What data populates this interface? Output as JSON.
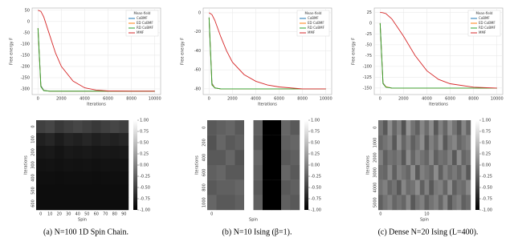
{
  "chart_data": [
    {
      "type": "line",
      "xlabel": "Iterations",
      "ylabel": "Free energy F",
      "legend_title": "Mean-field",
      "legend": "upper right",
      "grid": true,
      "x": [
        0,
        250,
        500,
        1000,
        1500,
        2000,
        3000,
        4000,
        5000,
        6000,
        8000,
        10000
      ],
      "xlim": [
        -500,
        10500
      ],
      "xticks": [
        0,
        2000,
        4000,
        6000,
        8000,
        10000
      ],
      "ylim": [
        -325,
        60
      ],
      "yticks": [
        50,
        0,
        -50,
        -100,
        -150,
        -200,
        -250,
        -300
      ],
      "series": [
        {
          "name": "CoBMF",
          "color": "#1f77b4",
          "values": [
            -30,
            -285,
            -306,
            -310,
            -310,
            -310,
            -310,
            -310,
            -310,
            -310,
            -310,
            -310
          ]
        },
        {
          "name": "ED CoBMF",
          "color": "#ff7f0e",
          "values": [
            -30,
            -288,
            -307,
            -310,
            -310,
            -310,
            -310,
            -310,
            -310,
            -310,
            -310,
            -310
          ]
        },
        {
          "name": "RD CoBMF",
          "color": "#2ca02c",
          "values": [
            -30,
            -290,
            -308,
            -310,
            -310,
            -310,
            -310,
            -310,
            -310,
            -310,
            -310,
            -310
          ]
        },
        {
          "name": "MMF",
          "color": "#d62728",
          "values": [
            50,
            45,
            20,
            -60,
            -140,
            -200,
            -265,
            -295,
            -305,
            -309,
            -310,
            -310
          ]
        }
      ]
    },
    {
      "type": "heatmap",
      "xlabel": "Spin",
      "ylabel": "Iterations",
      "zlim": [
        -1,
        1
      ],
      "row_labels": [
        "0",
        "100",
        "200",
        "300",
        "400",
        "500",
        "600"
      ],
      "col_labels": [
        "0",
        "10",
        "20",
        "30",
        "40",
        "50",
        "60",
        "70",
        "80",
        "90"
      ],
      "zticks": [
        {
          "value": 1,
          "label": "1.00"
        },
        {
          "value": 0.75,
          "label": "0.75"
        },
        {
          "value": 0.5,
          "label": "0.50"
        },
        {
          "value": 0.25,
          "label": "0.25"
        },
        {
          "value": 0,
          "label": "0.00"
        },
        {
          "value": -0.25,
          "label": "-0.25"
        },
        {
          "value": -0.5,
          "label": "-0.50"
        },
        {
          "value": -0.75,
          "label": "-0.75"
        },
        {
          "value": -1,
          "label": "-1.00"
        }
      ],
      "z": [
        [
          -0.5,
          -0.45,
          -0.55,
          -0.5,
          -0.45,
          -0.5,
          -0.55,
          -0.5,
          -0.45,
          -0.5
        ],
        [
          -0.75,
          -0.7,
          -0.78,
          -0.72,
          -0.75,
          -0.7,
          -0.76,
          -0.72,
          -0.74,
          -0.7
        ],
        [
          -0.82,
          -0.8,
          -0.84,
          -0.8,
          -0.82,
          -0.8,
          -0.83,
          -0.81,
          -0.82,
          -0.8
        ],
        [
          -0.86,
          -0.85,
          -0.87,
          -0.85,
          -0.86,
          -0.85,
          -0.87,
          -0.85,
          -0.86,
          -0.85
        ],
        [
          -0.88,
          -0.88,
          -0.89,
          -0.88,
          -0.88,
          -0.88,
          -0.89,
          -0.88,
          -0.88,
          -0.88
        ],
        [
          -0.9,
          -0.9,
          -0.9,
          -0.9,
          -0.9,
          -0.9,
          -0.9,
          -0.9,
          -0.9,
          -0.9
        ],
        [
          -0.9,
          -0.9,
          -0.9,
          -0.9,
          -0.9,
          -0.9,
          -0.9,
          -0.9,
          -0.9,
          -0.9
        ]
      ]
    },
    {
      "type": "line",
      "xlabel": "Iterations",
      "ylabel": "Free energy F",
      "legend_title": "Mean-field",
      "legend": "upper right",
      "grid": true,
      "x": [
        0,
        250,
        500,
        1000,
        1500,
        2000,
        3000,
        4000,
        5000,
        6000,
        8000,
        10000
      ],
      "xlim": [
        -500,
        10500
      ],
      "xticks": [
        0,
        2000,
        4000,
        6000,
        8000,
        10000
      ],
      "ylim": [
        -86,
        5
      ],
      "yticks": [
        0,
        -20,
        -40,
        -60,
        -80
      ],
      "series": [
        {
          "name": "CoBMF",
          "color": "#1f77b4",
          "values": [
            -5,
            -74,
            -79,
            -80,
            -80,
            -80,
            -80,
            -80,
            -80,
            -80,
            -80,
            -80
          ]
        },
        {
          "name": "ED CoBMF",
          "color": "#ff7f0e",
          "values": [
            -5,
            -75,
            -79,
            -80,
            -80,
            -80,
            -80,
            -80,
            -80,
            -80,
            -80,
            -80
          ]
        },
        {
          "name": "RD CoBMF",
          "color": "#2ca02c",
          "values": [
            -5,
            -76,
            -79,
            -80,
            -80,
            -80,
            -80,
            -80,
            -80,
            -80,
            -80,
            -80
          ]
        },
        {
          "name": "MMF",
          "color": "#d62728",
          "values": [
            0,
            -2,
            -8,
            -25,
            -40,
            -52,
            -65,
            -72,
            -76,
            -78,
            -80,
            -80
          ]
        }
      ]
    },
    {
      "type": "heatmap",
      "xlabel": "Spin",
      "ylabel": "Iterations",
      "zlim": [
        -1,
        1
      ],
      "row_labels": [
        "0",
        "200",
        "400",
        "600",
        "800",
        "1000"
      ],
      "col_labels": [
        "0",
        null,
        null,
        null,
        null,
        null,
        null,
        null,
        null,
        null
      ],
      "zticks": [
        {
          "value": 1,
          "label": "1.00"
        },
        {
          "value": 0.75,
          "label": "0.75"
        },
        {
          "value": 0.5,
          "label": "0.50"
        },
        {
          "value": 0.25,
          "label": "0.25"
        },
        {
          "value": 0,
          "label": "0.00"
        },
        {
          "value": -0.25,
          "label": "-0.25"
        },
        {
          "value": -0.5,
          "label": "-0.50"
        },
        {
          "value": -0.75,
          "label": "-0.75"
        },
        {
          "value": -1,
          "label": "-1.00"
        }
      ],
      "z": [
        [
          -0.3,
          -0.25,
          -0.2,
          -0.3,
          1,
          -0.25,
          -1,
          -1,
          -0.2,
          -0.3
        ],
        [
          -0.35,
          -0.2,
          -0.3,
          -0.25,
          1,
          -0.3,
          -1,
          -1,
          -0.25,
          -0.2
        ],
        [
          -0.3,
          -0.3,
          -0.2,
          -0.35,
          1,
          -0.2,
          -1,
          -1,
          -0.3,
          -0.25
        ],
        [
          -0.25,
          -0.2,
          -0.3,
          -0.3,
          1,
          -0.25,
          -1,
          -1,
          -0.2,
          -0.3
        ],
        [
          -0.3,
          -0.25,
          -0.25,
          -0.2,
          1,
          -0.3,
          -1,
          -1,
          -0.3,
          -0.25
        ],
        [
          -0.2,
          -0.3,
          -0.3,
          -0.25,
          1,
          -0.25,
          -1,
          -1,
          -0.25,
          -0.3
        ]
      ]
    },
    {
      "type": "line",
      "xlabel": "Iterations",
      "ylabel": "Free energy F",
      "legend_title": "Mean-field",
      "legend": "upper right",
      "grid": true,
      "x": [
        0,
        250,
        500,
        1000,
        1500,
        2000,
        3000,
        4000,
        5000,
        6000,
        8000,
        10000
      ],
      "xlim": [
        -500,
        10500
      ],
      "xticks": [
        0,
        2000,
        4000,
        6000,
        8000,
        10000
      ],
      "ylim": [
        -165,
        35
      ],
      "yticks": [
        25,
        0,
        -25,
        -50,
        -75,
        -100,
        -125,
        -150
      ],
      "series": [
        {
          "name": "CoBMF",
          "color": "#1f77b4",
          "values": [
            0,
            -138,
            -147,
            -150,
            -150,
            -150,
            -150,
            -150,
            -150,
            -150,
            -150,
            -150
          ]
        },
        {
          "name": "ED CoBMF",
          "color": "#ff7f0e",
          "values": [
            0,
            -139,
            -147,
            -150,
            -150,
            -150,
            -150,
            -150,
            -150,
            -150,
            -150,
            -150
          ]
        },
        {
          "name": "RD CoBMF",
          "color": "#2ca02c",
          "values": [
            0,
            -140,
            -148,
            -150,
            -150,
            -150,
            -150,
            -150,
            -150,
            -150,
            -150,
            -150
          ]
        },
        {
          "name": "MMF",
          "color": "#d62728",
          "values": [
            25,
            24,
            22,
            10,
            -10,
            -30,
            -75,
            -110,
            -130,
            -140,
            -148,
            -150
          ]
        }
      ]
    },
    {
      "type": "heatmap",
      "xlabel": "Spin",
      "ylabel": "Iterations",
      "zlim": [
        -1,
        1
      ],
      "row_labels": [
        "0",
        "1000",
        "2000",
        "3000",
        "4000",
        "5000"
      ],
      "col_labels": [
        "0",
        null,
        null,
        null,
        null,
        null,
        null,
        null,
        null,
        null,
        "10",
        null,
        null,
        null,
        null,
        null,
        null,
        null,
        null,
        null
      ],
      "zticks": [
        {
          "value": 1,
          "label": "1.00"
        },
        {
          "value": 0.75,
          "label": "0.75"
        },
        {
          "value": 0.5,
          "label": "0.50"
        },
        {
          "value": 0.25,
          "label": "0.25"
        },
        {
          "value": 0,
          "label": "0.00"
        },
        {
          "value": -0.25,
          "label": "-0.25"
        },
        {
          "value": -0.5,
          "label": "-0.50"
        },
        {
          "value": -0.75,
          "label": "-0.75"
        },
        {
          "value": -1,
          "label": "-1.00"
        }
      ],
      "z": [
        [
          -0.1,
          -0.3,
          0.1,
          -0.2,
          0,
          -0.35,
          0.15,
          -0.1,
          -0.25,
          0.05,
          -0.15,
          0.1,
          -0.3,
          0,
          -0.2,
          0.1,
          -0.1,
          -0.3,
          0.05,
          -0.2
        ],
        [
          -0.2,
          -0.1,
          0,
          -0.3,
          0.1,
          -0.2,
          0,
          -0.25,
          -0.1,
          0.1,
          -0.3,
          0,
          -0.15,
          0.1,
          -0.3,
          -0.05,
          0.05,
          -0.2,
          -0.1,
          0
        ],
        [
          0,
          -0.25,
          -0.1,
          -0.15,
          -0.05,
          -0.3,
          0.1,
          -0.2,
          0,
          -0.1,
          -0.2,
          0.05,
          -0.25,
          -0.1,
          -0.15,
          0,
          -0.3,
          0.1,
          -0.2,
          -0.1
        ],
        [
          -0.15,
          -0.2,
          0.05,
          -0.25,
          0,
          -0.1,
          -0.2,
          0.1,
          -0.3,
          0,
          -0.1,
          -0.2,
          0.1,
          -0.25,
          0,
          -0.15,
          -0.05,
          -0.2,
          0,
          -0.3
        ],
        [
          -0.1,
          0,
          -0.2,
          -0.1,
          -0.3,
          0.05,
          -0.15,
          -0.1,
          0.1,
          -0.25,
          0,
          -0.3,
          -0.05,
          0,
          -0.2,
          0.1,
          -0.25,
          -0.1,
          -0.15,
          0.05
        ],
        [
          -0.25,
          -0.1,
          0,
          -0.2,
          -0.1,
          -0.2,
          0.05,
          -0.3,
          -0.1,
          0,
          -0.25,
          -0.1,
          0,
          -0.2,
          0.05,
          -0.3,
          -0.1,
          0,
          -0.25,
          -0.15
        ]
      ]
    }
  ],
  "captions": [
    "(a) N=100 1D Spin Chain.",
    "(b) N=10 Ising (β=1).",
    "(c) Dense N=20 Ising (L=400)."
  ]
}
